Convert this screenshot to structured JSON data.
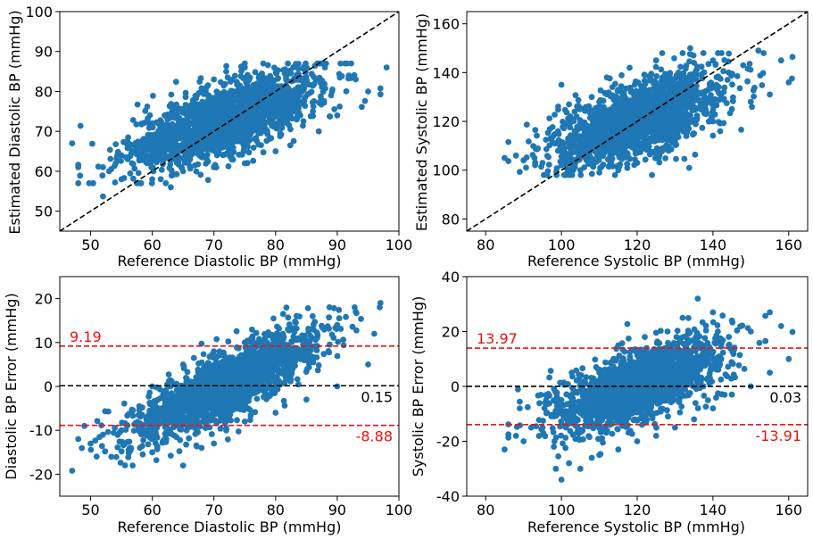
{
  "colors": {
    "points": "#1f77b4",
    "identity_line": "#000000",
    "mean_line": "#000000",
    "limit_line": "#ee1111",
    "limit_text": "#ee1111"
  },
  "chart_data": [
    {
      "id": "diastolic-scatter",
      "type": "scatter",
      "xlabel": "Reference Diastolic BP (mmHg)",
      "ylabel": "Estimated Diastolic BP (mmHg)",
      "xlim": [
        45,
        100
      ],
      "ylim": [
        45,
        100
      ],
      "xticks": [
        50,
        60,
        70,
        80,
        90,
        100
      ],
      "yticks": [
        50,
        60,
        70,
        80,
        90,
        100
      ],
      "identity_line": "y = x",
      "series": [
        {
          "points_summary": {
            "count_approx": 5000,
            "x_range": [
              47,
              98
            ],
            "center": [
              72,
              73
            ],
            "trend": "positive"
          },
          "points": [
            [
              47,
              67
            ],
            [
              48,
              61
            ],
            [
              48,
              57
            ],
            [
              52,
              53.7
            ],
            [
              53,
              60
            ],
            [
              55,
              58
            ],
            [
              58,
              57
            ],
            [
              60,
              58
            ],
            [
              63,
              56
            ],
            [
              65,
              60
            ],
            [
              70,
              61
            ],
            [
              75,
              62
            ],
            [
              80,
              65
            ],
            [
              87,
              70
            ],
            [
              90,
              74
            ],
            [
              95,
              80
            ],
            [
              98,
              86
            ],
            [
              60,
              72
            ],
            [
              62,
              74
            ],
            [
              65,
              75
            ],
            [
              68,
              80
            ],
            [
              70,
              83
            ],
            [
              72,
              85
            ],
            [
              75,
              86
            ],
            [
              78,
              87
            ],
            [
              82,
              87
            ],
            [
              85,
              86
            ],
            [
              88,
              86
            ],
            [
              72,
              77
            ],
            [
              77,
              82
            ],
            [
              55,
              64
            ],
            [
              52,
              61
            ],
            [
              84,
              74
            ],
            [
              89,
              79
            ],
            [
              93,
              83
            ]
          ]
        }
      ]
    },
    {
      "id": "systolic-scatter",
      "type": "scatter",
      "xlabel": "Reference Systolic BP (mmHg)",
      "ylabel": "Estimated Systolic BP (mmHg)",
      "xlim": [
        75,
        165
      ],
      "ylim": [
        75,
        165
      ],
      "xticks": [
        80,
        100,
        120,
        140,
        160
      ],
      "yticks": [
        80,
        100,
        120,
        140,
        160
      ],
      "identity_line": "y = x",
      "series": [
        {
          "points_summary": {
            "count_approx": 5000,
            "x_range": [
              85,
              162
            ],
            "center": [
              120,
              120
            ],
            "trend": "positive"
          },
          "points": [
            [
              85,
              105
            ],
            [
              88,
              106
            ],
            [
              90,
              104
            ],
            [
              95,
              103
            ],
            [
              100,
              102
            ],
            [
              105,
              100
            ],
            [
              110,
              99
            ],
            [
              115,
              100
            ],
            [
              120,
              103
            ],
            [
              125,
              107
            ],
            [
              130,
              112
            ],
            [
              135,
              115
            ],
            [
              140,
              120
            ],
            [
              145,
              125
            ],
            [
              150,
              128
            ],
            [
              155,
              131
            ],
            [
              160,
              136
            ],
            [
              100,
              135
            ],
            [
              102,
              127
            ],
            [
              104,
              122
            ],
            [
              108,
              130
            ],
            [
              112,
              138
            ],
            [
              118,
              142
            ],
            [
              125,
              145
            ],
            [
              132,
              148
            ],
            [
              134,
              150
            ],
            [
              140,
              145
            ],
            [
              148,
              143
            ],
            [
              152,
              149
            ],
            [
              158,
              145
            ],
            [
              110,
              128
            ],
            [
              115,
              133
            ],
            [
              122,
              139
            ]
          ]
        }
      ]
    },
    {
      "id": "diastolic-error",
      "type": "scatter",
      "xlabel": "Reference Diastolic BP (mmHg)",
      "ylabel": "Diastolic BP Error (mmHg)",
      "xlim": [
        45,
        100
      ],
      "ylim": [
        -25,
        25
      ],
      "xticks": [
        50,
        60,
        70,
        80,
        90,
        100
      ],
      "yticks": [
        -20,
        -10,
        0,
        10,
        20
      ],
      "hlines": [
        {
          "value": 9.19,
          "label": "9.19",
          "role": "upper-limit"
        },
        {
          "value": 0.15,
          "label": "0.15",
          "role": "mean"
        },
        {
          "value": -8.88,
          "label": "-8.88",
          "role": "lower-limit"
        }
      ],
      "series": [
        {
          "points_summary": {
            "count_approx": 5000,
            "x_range": [
              47,
              98
            ],
            "trend": "positive"
          },
          "points": [
            [
              47,
              -19.2
            ],
            [
              48,
              -12
            ],
            [
              49,
              -9
            ],
            [
              50,
              -13
            ],
            [
              52,
              -11
            ],
            [
              55,
              -10
            ],
            [
              58,
              -14
            ],
            [
              60,
              -15
            ],
            [
              62,
              -12
            ],
            [
              65,
              -18
            ],
            [
              68,
              -14
            ],
            [
              70,
              -13
            ],
            [
              72,
              -10
            ],
            [
              75,
              -8
            ],
            [
              80,
              -6
            ],
            [
              85,
              -3
            ],
            [
              90,
              0
            ],
            [
              95,
              5
            ],
            [
              97,
              19
            ],
            [
              96,
              12
            ],
            [
              93,
              17
            ],
            [
              90,
              14
            ],
            [
              86,
              16
            ],
            [
              82,
              13
            ],
            [
              80,
              11
            ],
            [
              75,
              10
            ],
            [
              70,
              8
            ],
            [
              65,
              5
            ],
            [
              60,
              0
            ],
            [
              62,
              -3
            ],
            [
              85,
              6
            ],
            [
              75,
              0
            ]
          ]
        }
      ]
    },
    {
      "id": "systolic-error",
      "type": "scatter",
      "xlabel": "Reference Systolic BP (mmHg)",
      "ylabel": "Systolic BP Error (mmHg)",
      "xlim": [
        75,
        165
      ],
      "ylim": [
        -40,
        40
      ],
      "xticks": [
        80,
        100,
        120,
        140,
        160
      ],
      "yticks": [
        -40,
        -20,
        0,
        20,
        40
      ],
      "hlines": [
        {
          "value": 13.97,
          "label": "13.97",
          "role": "upper-limit"
        },
        {
          "value": 0.03,
          "label": "0.03",
          "role": "mean"
        },
        {
          "value": -13.91,
          "label": "-13.91",
          "role": "lower-limit"
        }
      ],
      "series": [
        {
          "points_summary": {
            "count_approx": 5000,
            "x_range": [
              85,
              162
            ],
            "trend": "positive"
          },
          "points": [
            [
              85,
              -23
            ],
            [
              88,
              -18
            ],
            [
              90,
              -20
            ],
            [
              92,
              -15
            ],
            [
              95,
              -15
            ],
            [
              98,
              -22
            ],
            [
              100,
              -34
            ],
            [
              102,
              -28
            ],
            [
              105,
              -30
            ],
            [
              108,
              -26
            ],
            [
              110,
              -25
            ],
            [
              115,
              -23
            ],
            [
              120,
              -20
            ],
            [
              125,
              -18
            ],
            [
              130,
              -15
            ],
            [
              135,
              -12
            ],
            [
              140,
              -8
            ],
            [
              145,
              -3
            ],
            [
              150,
              0
            ],
            [
              155,
              5
            ],
            [
              160,
              10
            ],
            [
              158,
              22
            ],
            [
              155,
              27
            ],
            [
              150,
              20
            ],
            [
              145,
              24
            ],
            [
              140,
              27
            ],
            [
              136,
              32
            ],
            [
              132,
              25
            ],
            [
              128,
              20
            ],
            [
              122,
              18
            ],
            [
              115,
              15
            ],
            [
              110,
              5
            ],
            [
              105,
              0
            ],
            [
              100,
              -5
            ],
            [
              125,
              0
            ],
            [
              140,
              10
            ]
          ]
        }
      ]
    }
  ]
}
